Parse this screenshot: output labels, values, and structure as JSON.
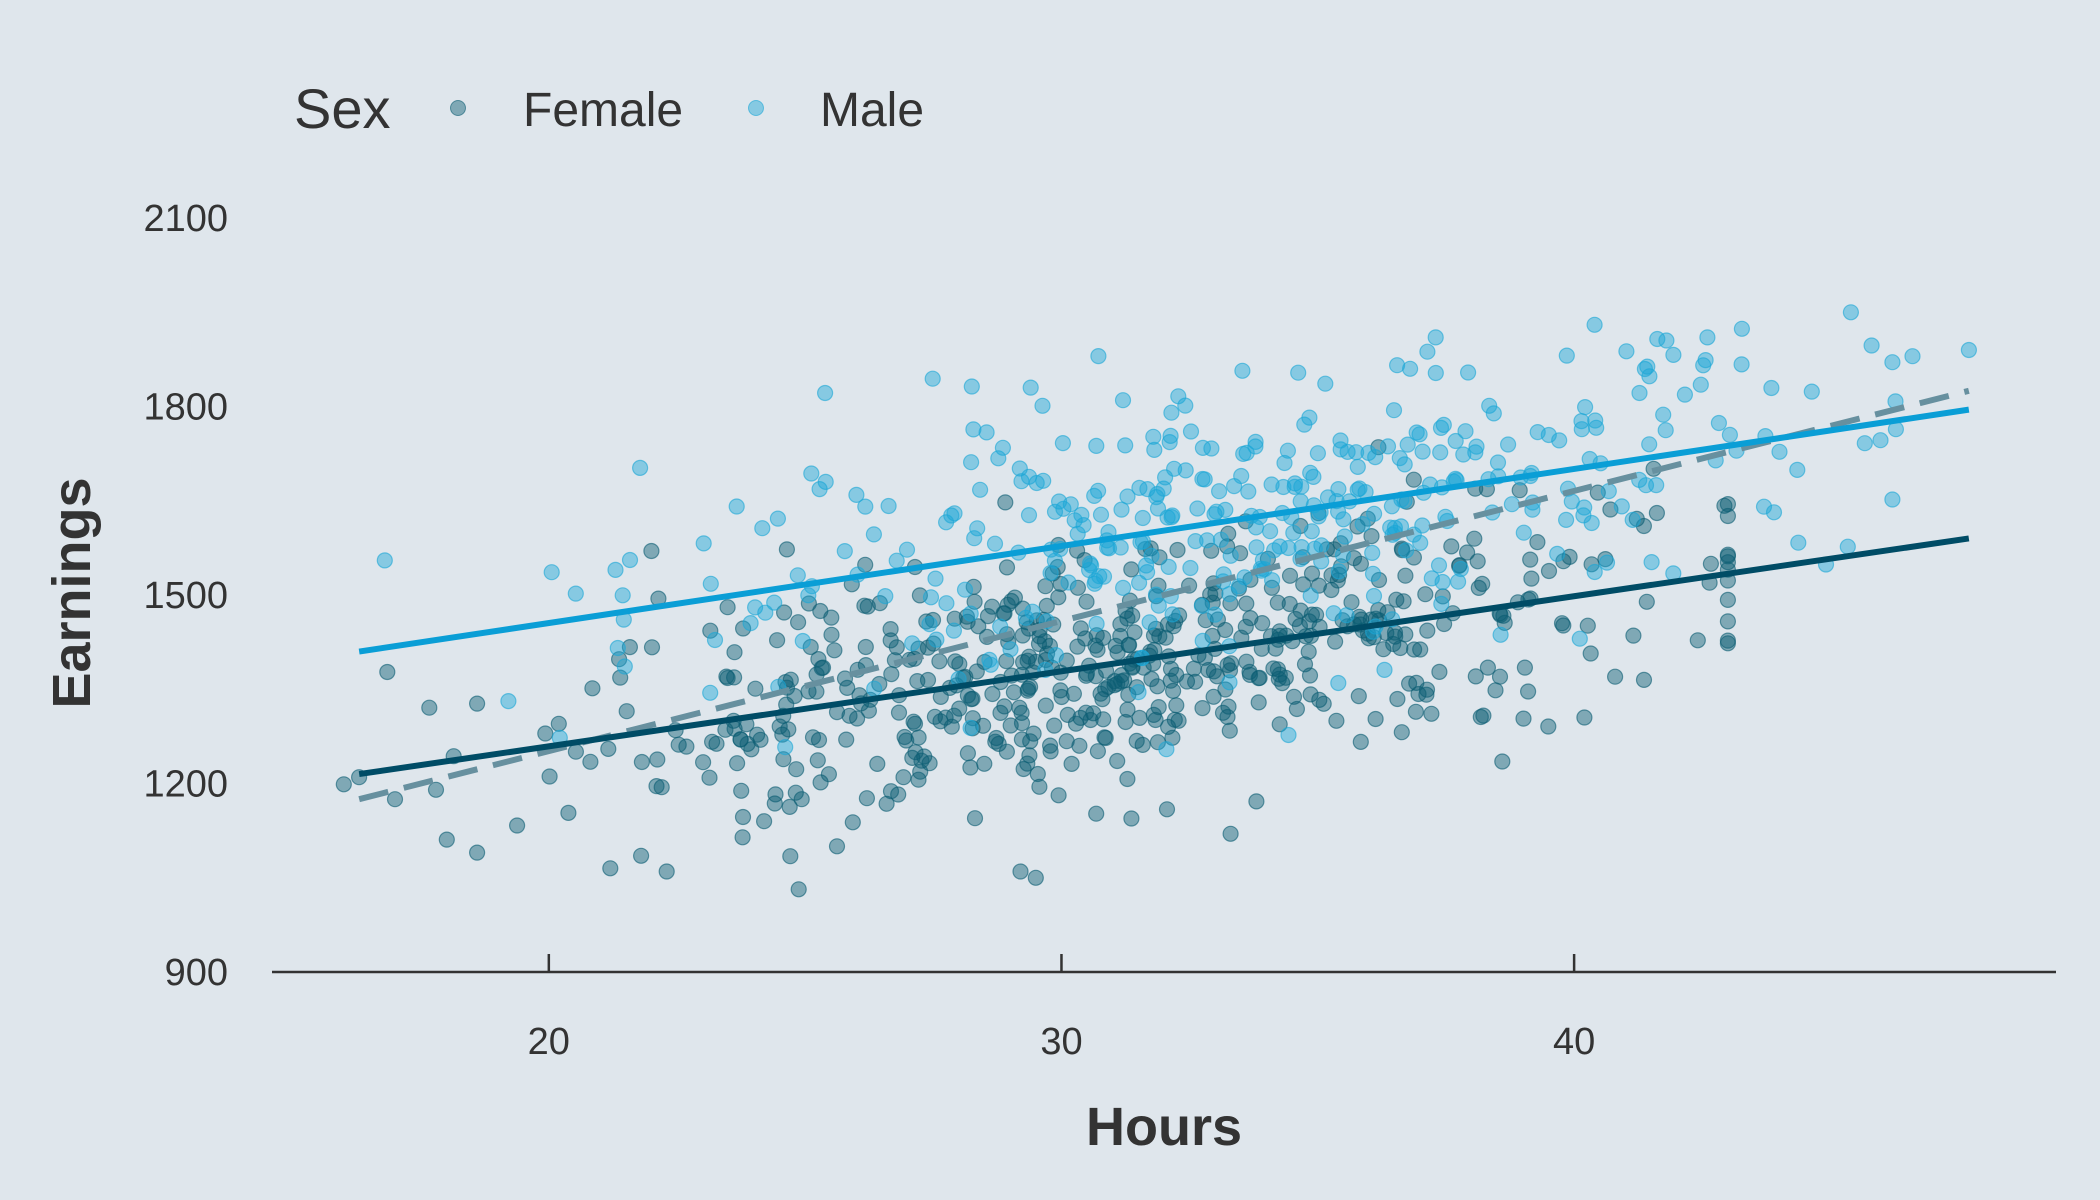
{
  "chart_data": {
    "type": "scatter",
    "title": "",
    "xlabel": "Hours",
    "ylabel": "Earnings",
    "xlim": [
      14.6,
      49.4
    ],
    "ylim": [
      900,
      2100
    ],
    "x_ticks": [
      20,
      30,
      40
    ],
    "y_ticks": [
      900,
      1200,
      1500,
      1800,
      2100
    ],
    "grid": false,
    "legend": {
      "title": "Sex",
      "position": "top-left",
      "entries": [
        "Female",
        "Male"
      ]
    },
    "colors": {
      "Female": "#0c5d73",
      "Male": "#1aa6d6",
      "female_line": "#004c66",
      "male_line": "#0a9ed6",
      "overall_line": "#67909f"
    },
    "series": [
      {
        "name": "Female",
        "n_points": 600,
        "hours_range": [
          16,
          43
        ],
        "points_sample": [
          [
            16.3,
            1210
          ],
          [
            17.0,
            1175
          ],
          [
            17.8,
            1190
          ],
          [
            18.6,
            1090
          ],
          [
            21.2,
            1065
          ],
          [
            21.8,
            1085
          ],
          [
            22.3,
            1060
          ],
          [
            24.2,
            1140
          ],
          [
            29.2,
            1060
          ],
          [
            29.5,
            1050
          ],
          [
            33.3,
            1120
          ],
          [
            38.6,
            1235
          ],
          [
            40.2,
            1305
          ],
          [
            22.0,
            1570
          ],
          [
            40.8,
            1370
          ]
        ],
        "fit_line": {
          "x": [
            16.3,
            47.7
          ],
          "y": [
            1215,
            1590
          ]
        }
      },
      {
        "name": "Male",
        "n_points": 400,
        "hours_range": [
          16,
          48
        ],
        "points_sample": [
          [
            16.8,
            1555
          ],
          [
            21.3,
            1540
          ],
          [
            25.4,
            1680
          ],
          [
            29.4,
            1830
          ],
          [
            31.2,
            1810
          ],
          [
            36.8,
            1860
          ],
          [
            37.3,
            1910
          ],
          [
            40.4,
            1930
          ],
          [
            42.6,
            1910
          ],
          [
            45.4,
            1950
          ],
          [
            46.6,
            1880
          ],
          [
            47.7,
            1890
          ],
          [
            35.4,
            1360
          ]
        ],
        "fit_line": {
          "x": [
            16.3,
            47.7
          ],
          "y": [
            1410,
            1795
          ]
        }
      },
      {
        "name": "",
        "style": "dashed",
        "fit_line": {
          "x": [
            16.3,
            47.7
          ],
          "y": [
            1175,
            1825
          ]
        }
      }
    ]
  }
}
